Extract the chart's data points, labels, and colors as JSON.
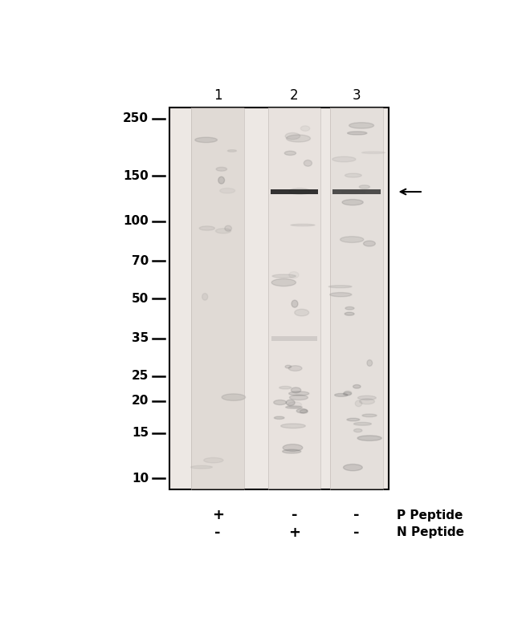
{
  "lane_labels": [
    "1",
    "2",
    "3"
  ],
  "mw_labels": [
    "250",
    "150",
    "100",
    "70",
    "50",
    "35",
    "25",
    "20",
    "15",
    "10"
  ],
  "mw_values": [
    250,
    150,
    100,
    70,
    50,
    35,
    25,
    20,
    15,
    10
  ],
  "p_peptide_row": [
    "+",
    "-",
    "-"
  ],
  "n_peptide_row": [
    "-",
    "+",
    "-"
  ],
  "gel_bg": "#ede8e4",
  "lane1_color": "#d6cfc9",
  "lane2_color": "#e4deda",
  "lane3_color": "#ddd8d4",
  "band_mw": 130,
  "font_size_lane": 12,
  "font_size_mw": 11,
  "font_size_peptide": 11,
  "font_size_pm": 13
}
